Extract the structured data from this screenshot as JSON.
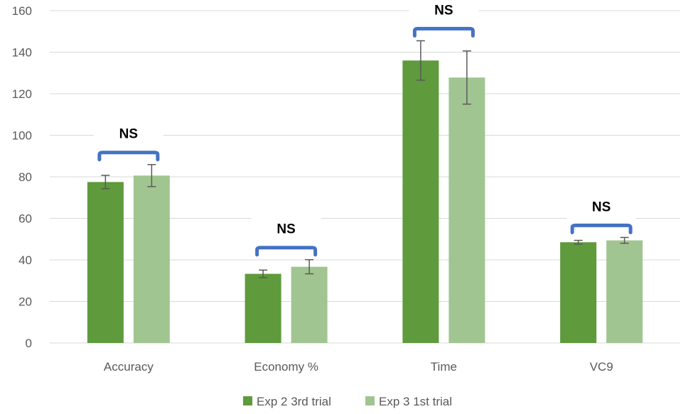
{
  "chart_data": {
    "type": "bar",
    "categories": [
      "Accuracy",
      "Economy %",
      "Time",
      "VC9"
    ],
    "series": [
      {
        "name": "Exp 2 3rd trial",
        "color": "#5f9a3c",
        "values": [
          77.5,
          33.3,
          136,
          48.5
        ],
        "errors": [
          3.2,
          1.8,
          9.5,
          0.9
        ]
      },
      {
        "name": "Exp 3 1st trial",
        "color": "#a1c591",
        "values": [
          80.6,
          36.7,
          127.8,
          49.4
        ],
        "errors": [
          5.3,
          3.4,
          12.8,
          1.4
        ]
      }
    ],
    "ylim": [
      0,
      160
    ],
    "yticks": [
      0,
      20,
      40,
      60,
      80,
      100,
      120,
      140,
      160
    ],
    "annotations": [
      "NS",
      "NS",
      "NS",
      "NS"
    ],
    "annotation_color": "#4472c4",
    "grid": true,
    "legend": "bottom",
    "title": "",
    "xlabel": "",
    "ylabel": ""
  }
}
